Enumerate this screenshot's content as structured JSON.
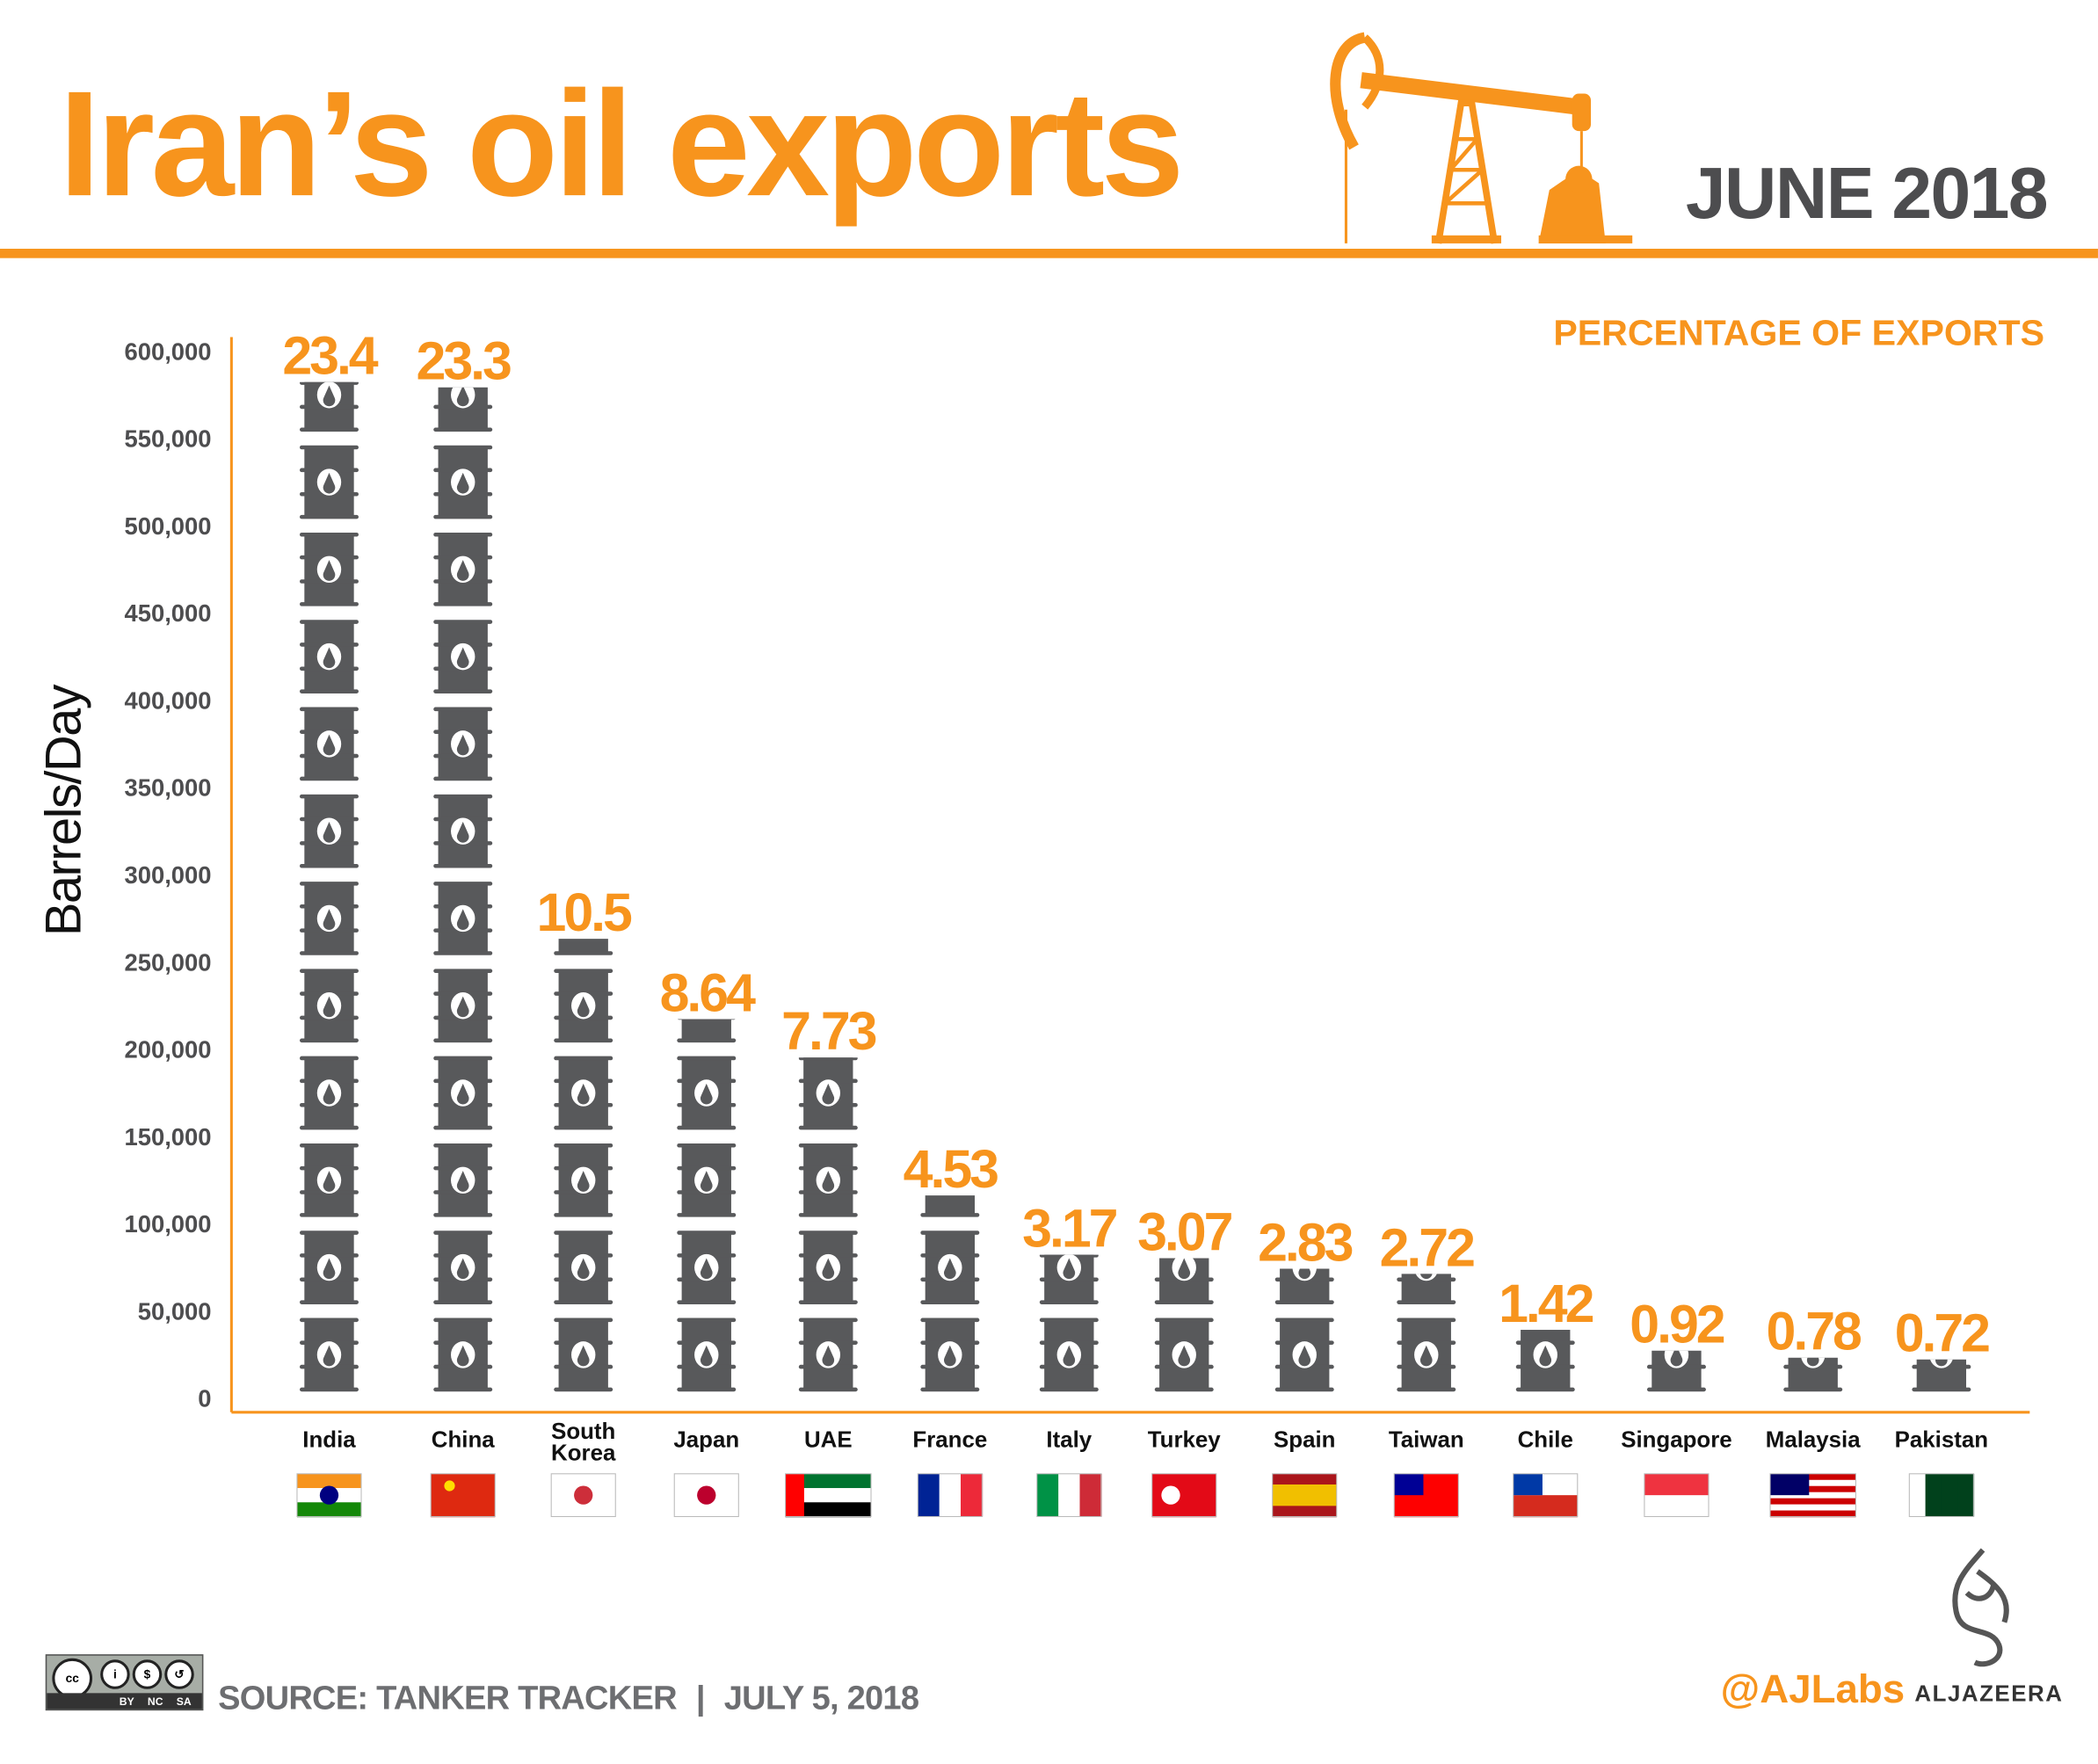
{
  "header": {
    "title": "Iran’s oil exports",
    "date": "JUNE 2018",
    "icon": "oil-pumpjack-icon"
  },
  "colors": {
    "accent": "#f7941d",
    "barrel": "#58595b",
    "text_dark": "#4d4d4f"
  },
  "chart_data": {
    "type": "bar",
    "mark": "stacked barrel pictogram (one barrel per 50,000 barrels/day)",
    "ylabel": "Barrels/Day",
    "data_label_heading": "PERCENTAGE OF EXPORTS",
    "ylim": [
      0,
      600000
    ],
    "yticks": [
      "0",
      "50,000",
      "100,000",
      "150,000",
      "200,000",
      "250,000",
      "300,000",
      "350,000",
      "400,000",
      "450,000",
      "500,000",
      "550,000",
      "600,000"
    ],
    "categories": [
      "India",
      "China",
      "South Korea",
      "Japan",
      "UAE",
      "France",
      "Italy",
      "Turkey",
      "Spain",
      "Taiwan",
      "Chile",
      "Singapore",
      "Malaysia",
      "Pakistan"
    ],
    "values": [
      578000,
      575000,
      259000,
      213000,
      191000,
      112000,
      78000,
      76000,
      70000,
      67000,
      35000,
      23000,
      19000,
      18000
    ],
    "percent_labels": [
      "23.4",
      "23.3",
      "10.5",
      "8.64",
      "7.73",
      "4.53",
      "3.17",
      "3.07",
      "2.83",
      "2.72",
      "1.42",
      "0.92",
      "0.78",
      "0.72"
    ],
    "grid": false,
    "legend": "none"
  },
  "flags": [
    {
      "country": "India",
      "stripes": "h",
      "colors": [
        "#f7941d",
        "#ffffff",
        "#138808"
      ],
      "emblem": "#000080"
    },
    {
      "country": "China",
      "stripes": "h",
      "colors": [
        "#de2910"
      ],
      "emblem": "#ffde00"
    },
    {
      "country": "South Korea",
      "stripes": "h",
      "colors": [
        "#ffffff"
      ],
      "emblem": "#cd2e3a"
    },
    {
      "country": "Japan",
      "stripes": "h",
      "colors": [
        "#ffffff"
      ],
      "emblem": "#bc002d"
    },
    {
      "country": "UAE",
      "stripes": "h",
      "colors": [
        "#00732f",
        "#ffffff",
        "#000000"
      ],
      "emblem": "#ff0000"
    },
    {
      "country": "France",
      "stripes": "v",
      "colors": [
        "#002395",
        "#ffffff",
        "#ed2939"
      ]
    },
    {
      "country": "Italy",
      "stripes": "v",
      "colors": [
        "#009246",
        "#ffffff",
        "#ce2b37"
      ]
    },
    {
      "country": "Turkey",
      "stripes": "h",
      "colors": [
        "#e30a17"
      ],
      "emblem": "#ffffff"
    },
    {
      "country": "Spain",
      "stripes": "h",
      "colors": [
        "#aa151b",
        "#f1bf00",
        "#f1bf00",
        "#aa151b"
      ]
    },
    {
      "country": "Taiwan",
      "stripes": "h",
      "colors": [
        "#fe0000"
      ],
      "emblem": "#000095"
    },
    {
      "country": "Chile",
      "stripes": "h",
      "colors": [
        "#ffffff",
        "#d52b1e"
      ],
      "emblem": "#0039a6"
    },
    {
      "country": "Singapore",
      "stripes": "h",
      "colors": [
        "#ef3340",
        "#ffffff"
      ]
    },
    {
      "country": "Malaysia",
      "stripes": "h",
      "colors": [
        "#cc0001",
        "#ffffff",
        "#cc0001",
        "#ffffff",
        "#cc0001",
        "#ffffff",
        "#cc0001"
      ],
      "emblem": "#010066"
    },
    {
      "country": "Pakistan",
      "stripes": "v",
      "colors": [
        "#ffffff",
        "#01411c",
        "#01411c",
        "#01411c"
      ]
    }
  ],
  "footer": {
    "license": {
      "badge": "cc-by-nc-sa-icon",
      "labels": [
        "BY",
        "NC",
        "SA"
      ],
      "cc": "cc"
    },
    "source": "SOURCE: TANKER TRACKER",
    "separator": "|",
    "published": "JULY 5, 2018",
    "handle": "@AJLabs",
    "brand": "ALJAZEERA"
  }
}
